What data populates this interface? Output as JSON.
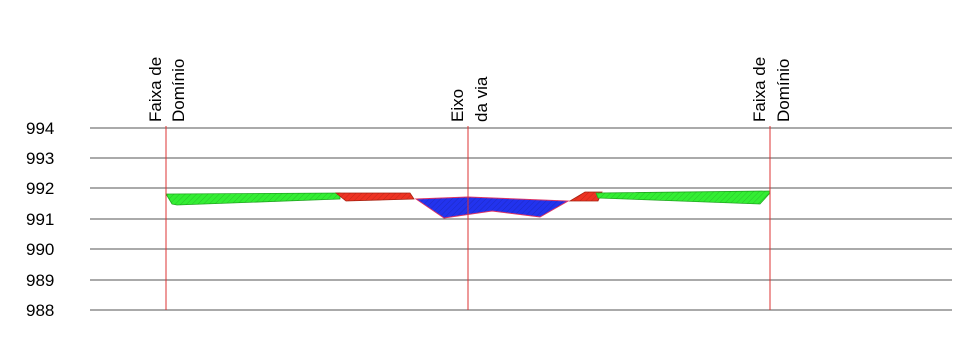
{
  "elevation_axis": {
    "ticks": [
      "994",
      "993",
      "992",
      "991",
      "990",
      "989",
      "988"
    ],
    "values": [
      994,
      993,
      992,
      991,
      990,
      989,
      988
    ]
  },
  "markers": {
    "left_domain": {
      "line1": "Faixa de",
      "line2": "Domínio"
    },
    "axis": {
      "line1": "Eixo",
      "line2": "da via"
    },
    "right_domain": {
      "line1": "Faixa de",
      "line2": "Domínio"
    }
  },
  "legend_colors": {
    "fill_green": "#33ee33",
    "cut_red": "#ee3322",
    "road_blue": "#2233ee",
    "marker_line": "#dd3333",
    "grid_line": "#555555"
  }
}
